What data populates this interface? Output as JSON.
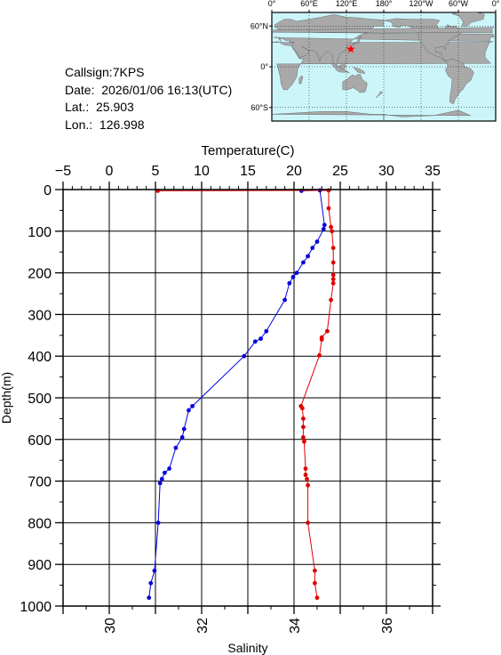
{
  "info": {
    "callsign": "Callsign:7KPS",
    "date": "Date:  2026/01/06 16:13(UTC)",
    "lat": "Lat.:  25.903",
    "lon": "Lon.:  126.998"
  },
  "map": {
    "lon_labels": [
      "0°",
      "60°E",
      "120°E",
      "180°",
      "120°W",
      "60°W",
      "0°"
    ],
    "lat_labels": [
      "60°N",
      "0°",
      "60°S"
    ],
    "station": {
      "lat": 25.903,
      "lon": 126.998
    },
    "ocean_color": "#ccf5fa",
    "land_color": "#a9a9a9",
    "marker_color": "#ff0000"
  },
  "chart_data": {
    "type": "line",
    "title": "",
    "xlabel_top": "Temperature(C)",
    "xlabel_bottom": "Salinity",
    "ylabel": "Depth(m)",
    "temperature_range": [
      -5,
      35
    ],
    "temperature_ticks": [
      "−5",
      "0",
      "5",
      "10",
      "15",
      "20",
      "25",
      "30",
      "35"
    ],
    "salinity_range": [
      29,
      37
    ],
    "salinity_ticks": [
      "30",
      "32",
      "34",
      "36"
    ],
    "depth_range": [
      0,
      1000
    ],
    "depth_ticks": [
      "0",
      "100",
      "200",
      "300",
      "400",
      "500",
      "600",
      "700",
      "800",
      "900",
      "1000"
    ],
    "grid": true,
    "series": [
      {
        "quantity": "temperature",
        "color": "#0000dd",
        "points": [
          [
            20.8,
            3
          ],
          [
            22.8,
            2
          ],
          [
            23.3,
            85
          ],
          [
            23.2,
            95
          ],
          [
            22.5,
            125
          ],
          [
            22.0,
            140
          ],
          [
            21.5,
            160
          ],
          [
            21.0,
            175
          ],
          [
            20.3,
            200
          ],
          [
            19.9,
            210
          ],
          [
            19.5,
            225
          ],
          [
            19.0,
            265
          ],
          [
            17.0,
            340
          ],
          [
            16.4,
            358
          ],
          [
            15.8,
            365
          ],
          [
            14.6,
            400
          ],
          [
            9.0,
            520
          ],
          [
            8.6,
            530
          ],
          [
            8.1,
            575
          ],
          [
            7.9,
            595
          ],
          [
            7.2,
            620
          ],
          [
            6.5,
            670
          ],
          [
            6.0,
            680
          ],
          [
            5.7,
            695
          ],
          [
            5.5,
            705
          ],
          [
            5.3,
            800
          ],
          [
            4.9,
            915
          ],
          [
            4.5,
            945
          ],
          [
            4.3,
            980
          ]
        ]
      },
      {
        "quantity": "salinity",
        "color": "#dd0000",
        "points": [
          [
            31.05,
            3
          ],
          [
            34.75,
            2
          ],
          [
            34.75,
            45
          ],
          [
            34.8,
            90
          ],
          [
            34.82,
            100
          ],
          [
            34.85,
            140
          ],
          [
            34.85,
            175
          ],
          [
            34.85,
            205
          ],
          [
            34.85,
            215
          ],
          [
            34.85,
            225
          ],
          [
            34.8,
            265
          ],
          [
            34.72,
            340
          ],
          [
            34.6,
            355
          ],
          [
            34.6,
            360
          ],
          [
            34.55,
            398
          ],
          [
            34.15,
            520
          ],
          [
            34.18,
            525
          ],
          [
            34.2,
            550
          ],
          [
            34.2,
            570
          ],
          [
            34.2,
            595
          ],
          [
            34.22,
            605
          ],
          [
            34.25,
            670
          ],
          [
            34.25,
            685
          ],
          [
            34.28,
            695
          ],
          [
            34.3,
            710
          ],
          [
            34.3,
            800
          ],
          [
            34.45,
            915
          ],
          [
            34.45,
            945
          ],
          [
            34.5,
            980
          ]
        ]
      }
    ]
  }
}
